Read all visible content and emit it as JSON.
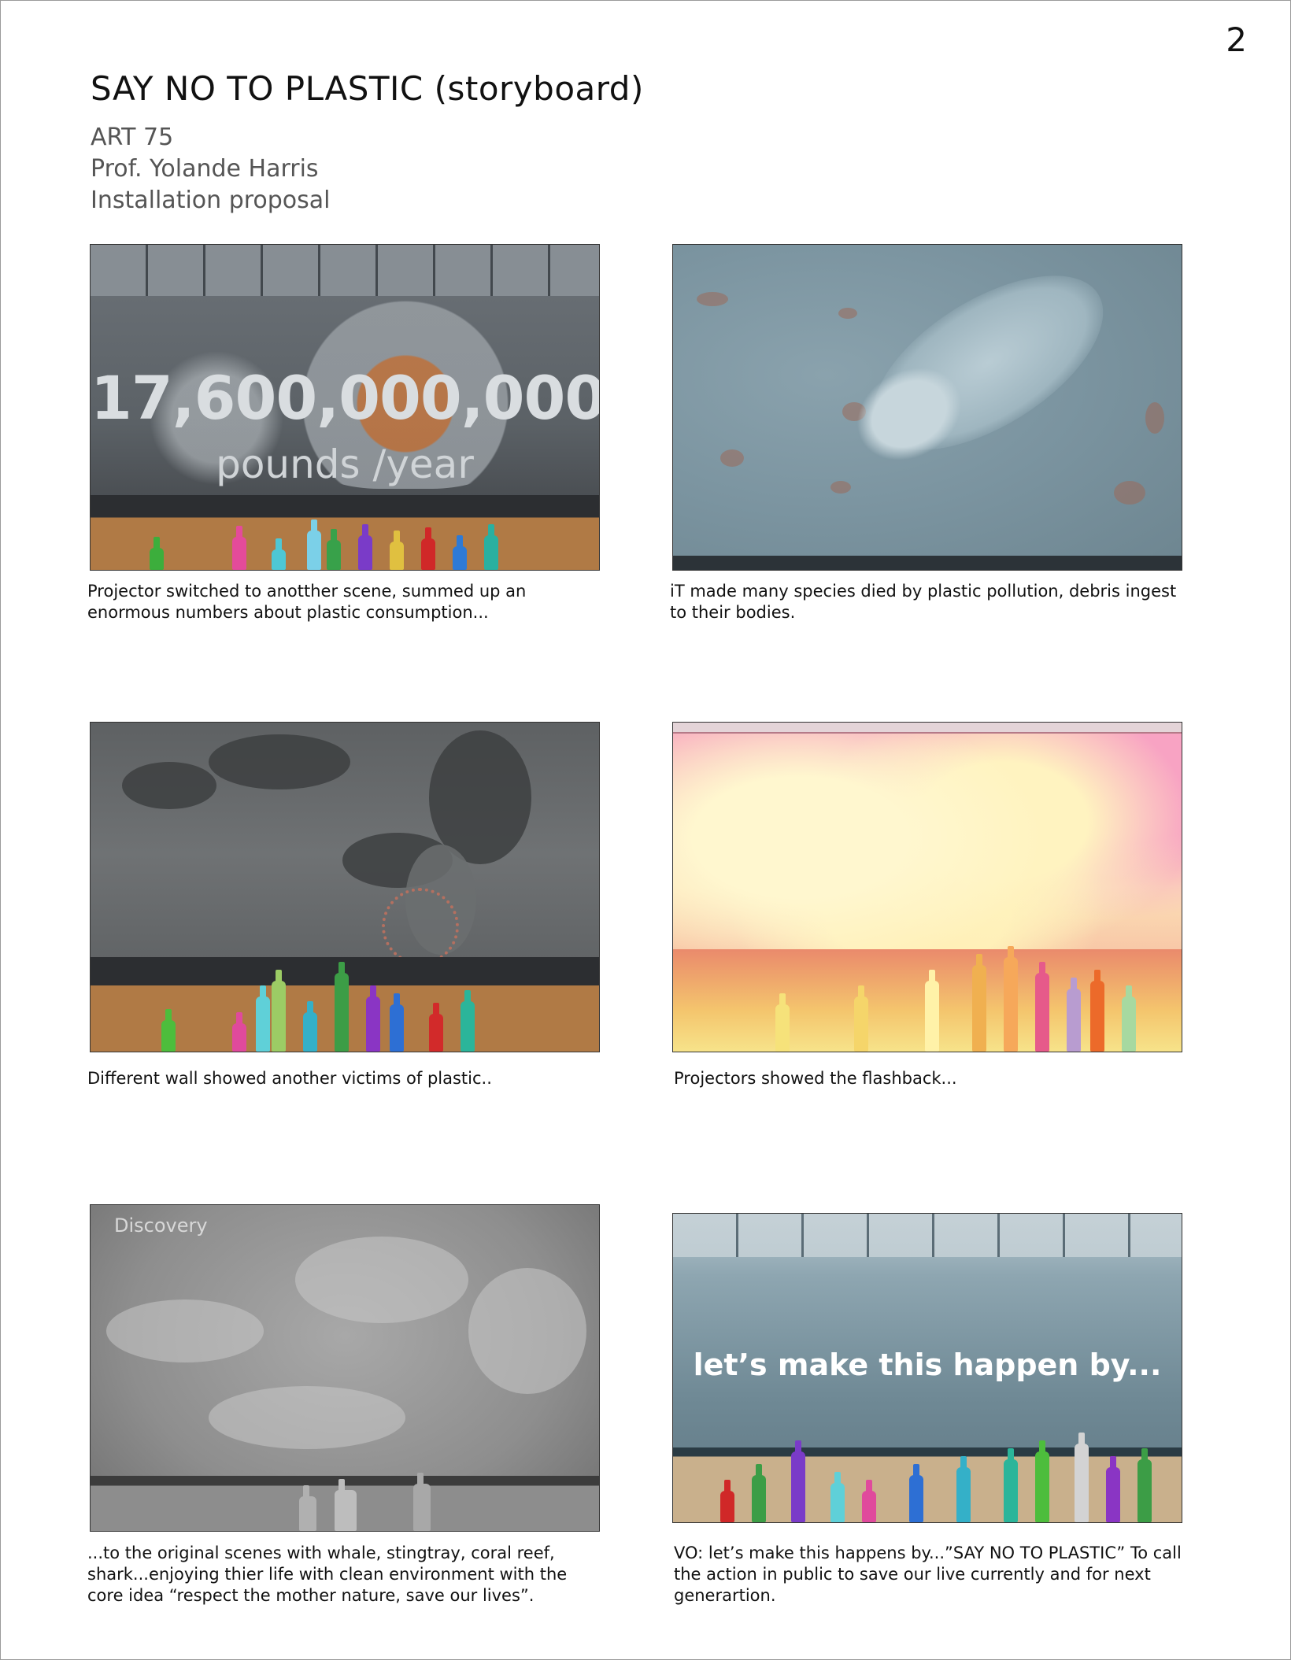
{
  "page": {
    "number": "2",
    "title": "SAY NO TO PLASTIC (storyboard)",
    "meta": [
      "ART 75",
      "Prof. Yolande Harris",
      "Installation proposal"
    ]
  },
  "panels": [
    {
      "overlay_text": "17,600,000,000",
      "overlay_sub": "pounds /year",
      "caption": "Projector switched to anotther scene, summed up an enormous numbers about plastic consumption..."
    },
    {
      "caption": "iT made many species died by plastic pollution, debris ingest to their bodies."
    },
    {
      "caption": "Different wall showed another victims of plastic.."
    },
    {
      "caption": "Projectors showed the flashback..."
    },
    {
      "logo": "Discovery",
      "caption": "...to the original scenes with whale, stingtray, coral reef, shark...enjoying thier life with clean environment with the core idea “respect the mother nature, save our lives”."
    },
    {
      "overlay_text": "let’s make this happen by...",
      "caption": "VO: let’s make this happens by...”SAY NO TO PLASTIC” To call the action in public to save our live currently and for next generartion."
    }
  ]
}
